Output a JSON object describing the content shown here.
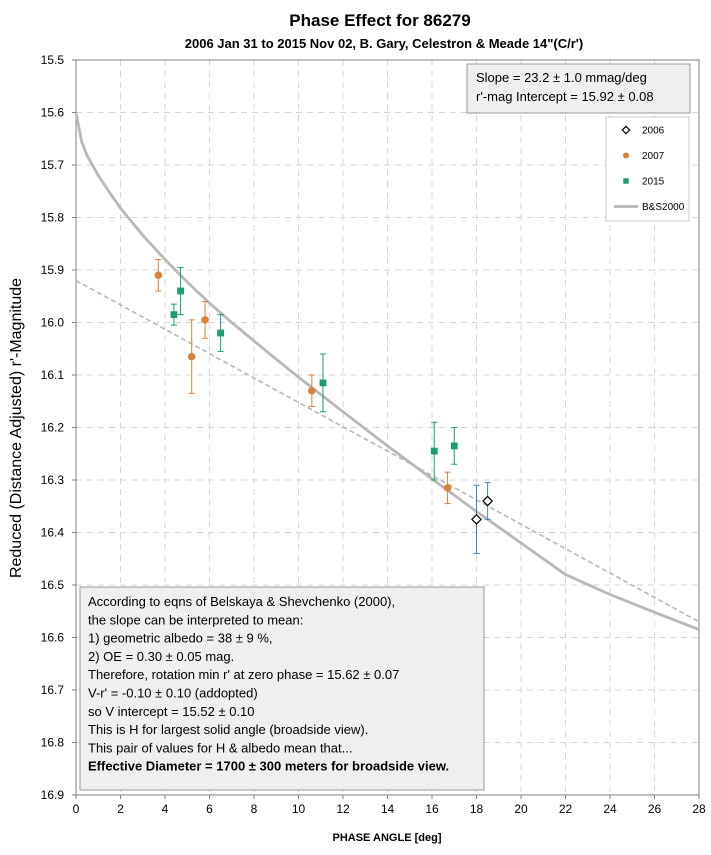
{
  "chart_data": {
    "type": "scatter",
    "title": "Phase Effect for 86279",
    "subtitle": "2006 Jan 31 to 2015 Nov 02, B. Gary, Celestron & Meade 14\"(C/r')",
    "xlabel": "PHASE ANGLE [deg]",
    "ylabel": "Reduced (Distance Adjusted) r'-Magnitude",
    "xlim": [
      0,
      28
    ],
    "ylim": [
      16.9,
      15.5
    ],
    "y_inverted": true,
    "x_ticks": [
      "0",
      "2",
      "4",
      "6",
      "8",
      "10",
      "12",
      "14",
      "16",
      "18",
      "20",
      "22",
      "24",
      "26",
      "28"
    ],
    "y_ticks": [
      "15.5",
      "15.6",
      "15.7",
      "15.8",
      "15.9",
      "16.0",
      "16.1",
      "16.2",
      "16.3",
      "16.4",
      "16.5",
      "16.6",
      "16.7",
      "16.8",
      "16.9"
    ],
    "grid": true,
    "legend_position": "top-right",
    "series": [
      {
        "name": "2006",
        "marker": "diamond-open",
        "color": "#000000",
        "errorbar_color": "#4a7fb0",
        "points": [
          {
            "x": 18.0,
            "y": 16.375,
            "err": 0.065
          },
          {
            "x": 18.5,
            "y": 16.34,
            "err": 0.035
          }
        ]
      },
      {
        "name": "2007",
        "marker": "circle",
        "color": "#d9823b",
        "errorbar_color": "#d9823b",
        "points": [
          {
            "x": 3.7,
            "y": 15.91,
            "err": 0.03
          },
          {
            "x": 5.2,
            "y": 16.065,
            "err": 0.07
          },
          {
            "x": 5.8,
            "y": 15.995,
            "err": 0.035
          },
          {
            "x": 10.6,
            "y": 16.13,
            "err": 0.03
          },
          {
            "x": 16.7,
            "y": 16.315,
            "err": 0.03
          }
        ]
      },
      {
        "name": "2015",
        "marker": "square",
        "color": "#1a9e6e",
        "errorbar_color": "#1a9e6e",
        "points": [
          {
            "x": 4.4,
            "y": 15.985,
            "err": 0.02
          },
          {
            "x": 4.7,
            "y": 15.94,
            "err": 0.045
          },
          {
            "x": 6.5,
            "y": 16.02,
            "err": 0.035
          },
          {
            "x": 11.1,
            "y": 16.115,
            "err": 0.055
          },
          {
            "x": 16.1,
            "y": 16.245,
            "err": 0.055
          },
          {
            "x": 17.0,
            "y": 16.235,
            "err": 0.035
          }
        ]
      }
    ],
    "curves": [
      {
        "name": "B&S2000",
        "style": "solid",
        "color": "#b8b8b8",
        "points": [
          [
            0,
            15.6
          ],
          [
            0.25,
            15.655
          ],
          [
            0.5,
            15.682
          ],
          [
            1,
            15.72
          ],
          [
            1.5,
            15.752
          ],
          [
            2,
            15.782
          ],
          [
            3,
            15.834
          ],
          [
            4,
            15.88
          ],
          [
            5,
            15.923
          ],
          [
            6,
            15.963
          ],
          [
            7,
            16.0
          ],
          [
            8,
            16.035
          ],
          [
            9,
            16.07
          ],
          [
            10,
            16.104
          ],
          [
            12,
            16.17
          ],
          [
            14,
            16.235
          ],
          [
            16,
            16.298
          ],
          [
            18,
            16.36
          ],
          [
            20,
            16.42
          ],
          [
            22,
            16.48
          ],
          [
            24,
            16.518
          ],
          [
            26,
            16.552
          ],
          [
            28,
            16.585
          ]
        ]
      },
      {
        "style": "dashed",
        "color": "#b8b8b8",
        "points": [
          [
            0,
            15.92
          ],
          [
            28,
            16.57
          ]
        ]
      }
    ],
    "annotations": {
      "slope_box": [
        "Slope = 23.2 ± 1.0 mmag/deg",
        "r'-mag Intercept = 15.92 ± 0.08"
      ],
      "notes_box": [
        {
          "text": "According to eqns of Belskaya & Shevchenko (2000),",
          "bold": false
        },
        {
          "text": "the slope can be interpreted to mean:",
          "bold": false
        },
        {
          "text": "    1) geometric albedo = 38 ± 9 %,",
          "bold": false
        },
        {
          "text": "    2) OE = 0.30 ± 0.05 mag.",
          "bold": false
        },
        {
          "text": "Therefore, rotation min r' at zero phase = 15.62 ± 0.07",
          "bold": false
        },
        {
          "text": " V-r' = -0.10 ± 0.10 (addopted)",
          "bold": false
        },
        {
          "text": " so V intercept = 15.52 ± 0.10",
          "bold": false
        },
        {
          "text": "This is H for largest solid angle (broadside view).",
          "bold": false
        },
        {
          "text": "This pair of values for H & albedo mean that...",
          "bold": false
        },
        {
          "text": "Effective Diameter = 1700 ± 300 meters for broadside view.",
          "bold": true
        }
      ]
    }
  }
}
